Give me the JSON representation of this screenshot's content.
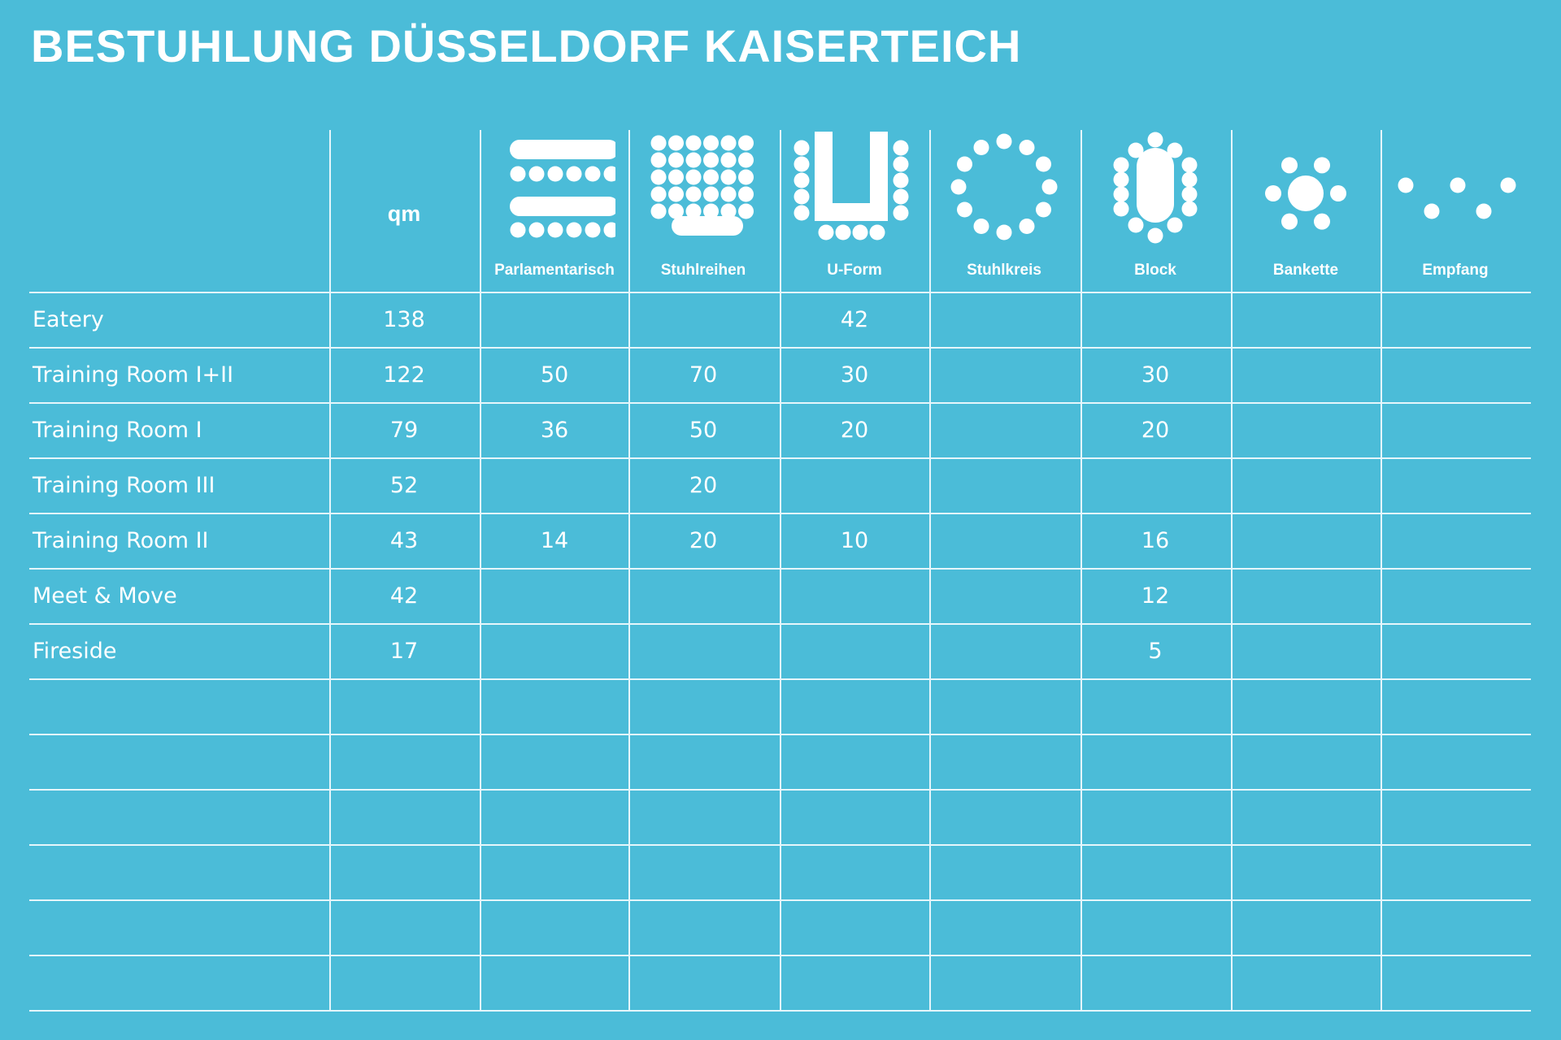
{
  "title": "BESTUHLUNG DÜSSELDORF KAISERTEICH",
  "table": {
    "qm_header": "qm",
    "columns": [
      {
        "label": "Parlamentarisch",
        "icon": "parliament-seating-icon"
      },
      {
        "label": "Stuhlreihen",
        "icon": "chair-rows-icon"
      },
      {
        "label": "U-Form",
        "icon": "u-shape-seating-icon"
      },
      {
        "label": "Stuhlkreis",
        "icon": "chair-circle-icon"
      },
      {
        "label": "Block",
        "icon": "block-seating-icon"
      },
      {
        "label": "Bankette",
        "icon": "banquet-seating-icon"
      },
      {
        "label": "Empfang",
        "icon": "reception-icon"
      }
    ],
    "rows": [
      {
        "name": "Eatery",
        "qm": "138",
        "values": [
          "",
          "",
          "42",
          "",
          "",
          "",
          ""
        ]
      },
      {
        "name": "Training Room I+II",
        "qm": "122",
        "values": [
          "50",
          "70",
          "30",
          "",
          "30",
          "",
          ""
        ]
      },
      {
        "name": "Training Room I",
        "qm": "79",
        "values": [
          "36",
          "50",
          "20",
          "",
          "20",
          "",
          ""
        ]
      },
      {
        "name": "Training Room III",
        "qm": "52",
        "values": [
          "",
          "20",
          "",
          "",
          "",
          "",
          ""
        ]
      },
      {
        "name": "Training Room II",
        "qm": "43",
        "values": [
          "14",
          "20",
          "10",
          "",
          "16",
          "",
          ""
        ]
      },
      {
        "name": "Meet & Move",
        "qm": "42",
        "values": [
          "",
          "",
          "",
          "",
          "12",
          "",
          ""
        ]
      },
      {
        "name": "Fireside",
        "qm": "17",
        "values": [
          "",
          "",
          "",
          "",
          "5",
          "",
          ""
        ]
      }
    ],
    "empty_rows": 6
  },
  "colors": {
    "background": "#4bbcd8",
    "text": "#ffffff",
    "lines": "#e6f6fb"
  }
}
